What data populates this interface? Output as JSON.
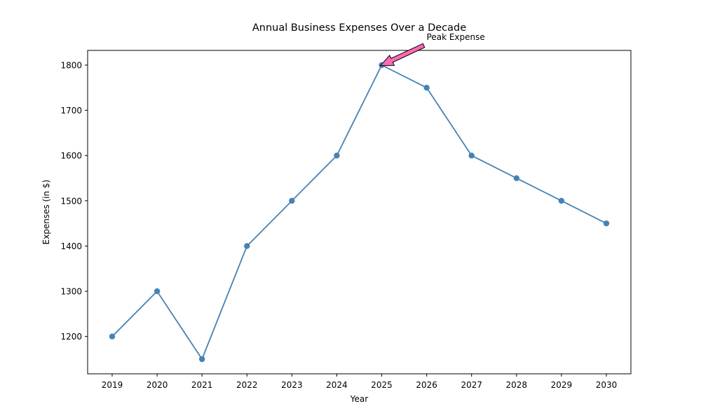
{
  "chart_data": {
    "type": "line",
    "title": "Annual Business Expenses Over a Decade",
    "xlabel": "Year",
    "ylabel": "Expenses (in $)",
    "x": [
      "2019",
      "2020",
      "2021",
      "2022",
      "2023",
      "2024",
      "2025",
      "2026",
      "2027",
      "2028",
      "2029",
      "2030"
    ],
    "series": [
      {
        "values": [
          1200,
          1300,
          1150,
          1400,
          1500,
          1600,
          1800,
          1750,
          1600,
          1550,
          1500,
          1450
        ],
        "color": "#4682b4",
        "marker": "circle"
      }
    ],
    "yticks": [
      1200,
      1300,
      1400,
      1500,
      1600,
      1700,
      1800
    ],
    "ylim": [
      1117.5,
      1832.5
    ],
    "grid": false,
    "annotation": {
      "text": "Peak Expense",
      "target_x": "2025",
      "target_y": 1800,
      "arrow_color": "#ff69b4"
    }
  }
}
